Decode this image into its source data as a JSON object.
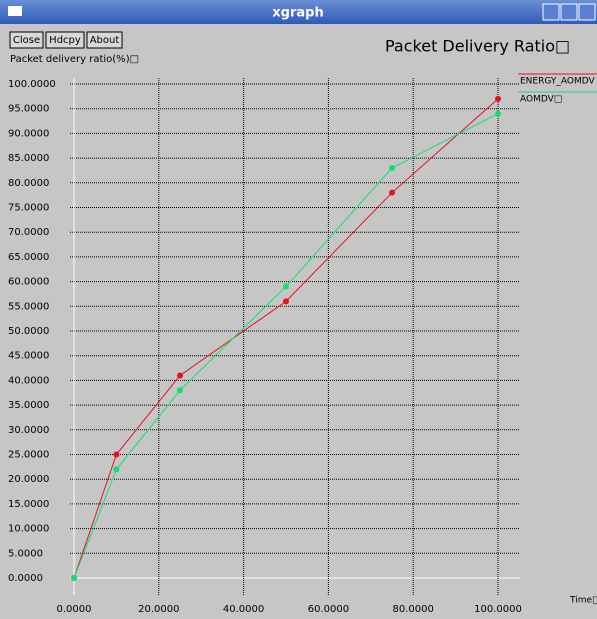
{
  "window": {
    "title": "xgraph",
    "buttons": [
      "Close",
      "Hdcpy",
      "About"
    ]
  },
  "chart_data": {
    "type": "line",
    "title": "Packet Delivery Ratio□",
    "y_label": "Packet delivery ratio(%)□",
    "x_label": "Time□",
    "series": [
      {
        "name": "ENERGY_AOMDV",
        "color": "#e8101c",
        "x": [
          0,
          10,
          25,
          50,
          75,
          100
        ],
        "values": [
          0,
          25,
          41,
          56,
          78,
          97
        ]
      },
      {
        "name": "AOMDV□",
        "color": "#10e070",
        "x": [
          0,
          10,
          25,
          50,
          75,
          100
        ],
        "values": [
          0,
          22,
          38,
          59,
          83,
          94
        ]
      }
    ],
    "xlim": [
      0,
      100
    ],
    "xticks": [
      {
        "value": 0,
        "label": "0.0000"
      },
      {
        "value": 20,
        "label": "20.0000"
      },
      {
        "value": 40,
        "label": "40.0000"
      },
      {
        "value": 60,
        "label": "60.0000"
      },
      {
        "value": 80,
        "label": "80.0000"
      },
      {
        "value": 100,
        "label": "100.0000"
      }
    ],
    "ylim": [
      0,
      100
    ],
    "yticks": [
      {
        "value": 0,
        "label": "0.0000"
      },
      {
        "value": 5,
        "label": "5.0000"
      },
      {
        "value": 10,
        "label": "10.0000"
      },
      {
        "value": 15,
        "label": "15.0000"
      },
      {
        "value": 20,
        "label": "20.0000"
      },
      {
        "value": 25,
        "label": "25.0000"
      },
      {
        "value": 30,
        "label": "30.0000"
      },
      {
        "value": 35,
        "label": "35.0000"
      },
      {
        "value": 40,
        "label": "40.0000"
      },
      {
        "value": 45,
        "label": "45.0000"
      },
      {
        "value": 50,
        "label": "50.0000"
      },
      {
        "value": 55,
        "label": "55.0000"
      },
      {
        "value": 60,
        "label": "60.0000"
      },
      {
        "value": 65,
        "label": "65.0000"
      },
      {
        "value": 70,
        "label": "70.0000"
      },
      {
        "value": 75,
        "label": "75.0000"
      },
      {
        "value": 80,
        "label": "80.0000"
      },
      {
        "value": 85,
        "label": "85.0000"
      },
      {
        "value": 90,
        "label": "90.0000"
      },
      {
        "value": 95,
        "label": "95.0000"
      },
      {
        "value": 100,
        "label": "100.0000"
      }
    ],
    "grid": true
  }
}
